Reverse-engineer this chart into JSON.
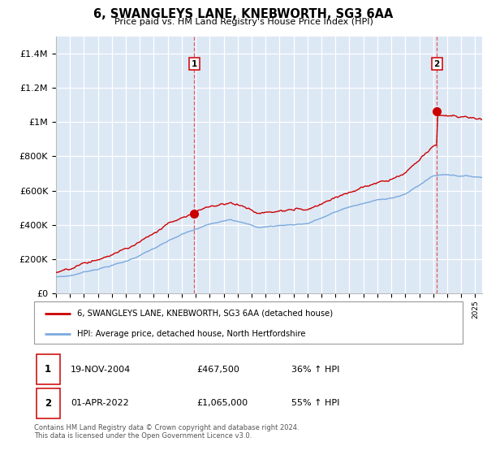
{
  "title": "6, SWANGLEYS LANE, KNEBWORTH, SG3 6AA",
  "subtitle": "Price paid vs. HM Land Registry's House Price Index (HPI)",
  "ylim": [
    0,
    1500000
  ],
  "yticks": [
    0,
    200000,
    400000,
    600000,
    800000,
    1000000,
    1200000,
    1400000
  ],
  "ytick_labels": [
    "£0",
    "£200K",
    "£400K",
    "£600K",
    "£800K",
    "£1M",
    "£1.2M",
    "£1.4M"
  ],
  "sale1_year": 2004.9,
  "sale1_price": 467500,
  "sale2_year": 2022.25,
  "sale2_price": 1065000,
  "sale1_date": "19-NOV-2004",
  "sale1_amount": "£467,500",
  "sale1_hpi": "36% ↑ HPI",
  "sale2_date": "01-APR-2022",
  "sale2_amount": "£1,065,000",
  "sale2_hpi": "55% ↑ HPI",
  "legend_line1": "6, SWANGLEYS LANE, KNEBWORTH, SG3 6AA (detached house)",
  "legend_line2": "HPI: Average price, detached house, North Hertfordshire",
  "footnote": "Contains HM Land Registry data © Crown copyright and database right 2024.\nThis data is licensed under the Open Government Licence v3.0.",
  "line_color_red": "#cc0000",
  "line_color_blue": "#7aaadd",
  "bg_color": "#dde8f5",
  "grid_color": "#ffffff",
  "sale_vline_color": "#cc0000"
}
